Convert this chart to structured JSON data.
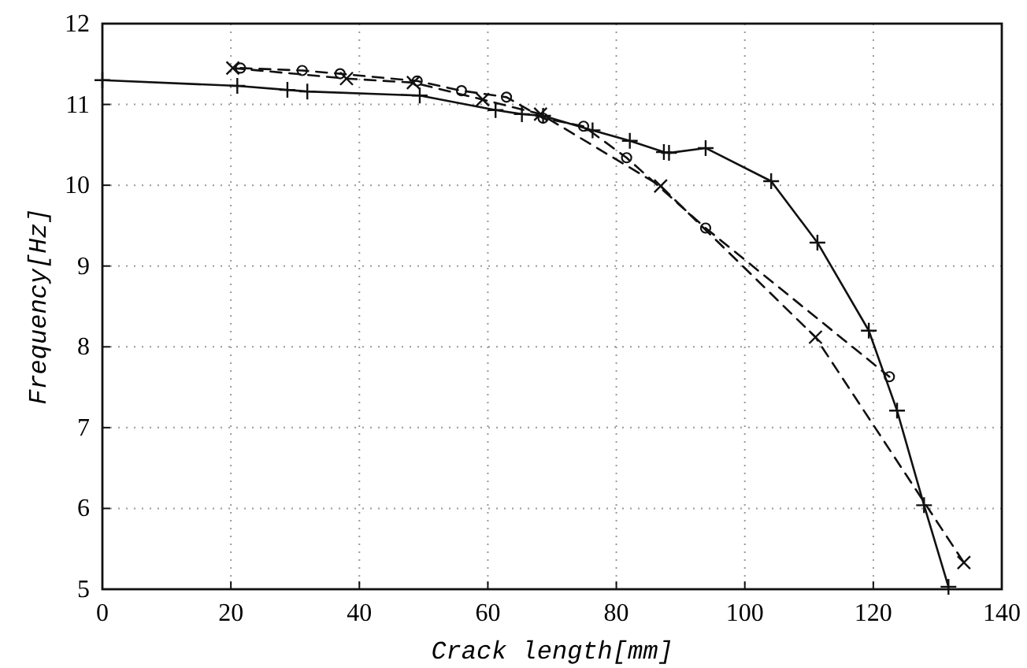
{
  "chart_data": {
    "type": "line",
    "xlabel": "Crack length[mm]",
    "ylabel": "Frequency[Hz]",
    "xlim": [
      0,
      140
    ],
    "ylim": [
      5,
      12
    ],
    "xticks": [
      0,
      20,
      40,
      60,
      80,
      100,
      120,
      140
    ],
    "yticks": [
      5,
      6,
      7,
      8,
      9,
      10,
      11,
      12
    ],
    "grid": true,
    "series": [
      {
        "color": "#111111",
        "marker": "plus",
        "line_style": "solid",
        "x": [
          0,
          21,
          28.8,
          31.9,
          49.4,
          61.2,
          65.3,
          68.6,
          76.3,
          82.1,
          87.4,
          88.2,
          93.9,
          104.1,
          111.3,
          119.3,
          123.7,
          127.9,
          131.7
        ],
        "values": [
          11.3,
          11.23,
          11.18,
          11.16,
          11.11,
          10.93,
          10.88,
          10.86,
          10.68,
          10.55,
          10.41,
          10.4,
          10.46,
          10.05,
          9.29,
          8.2,
          7.21,
          6.04,
          5.03
        ]
      },
      {
        "color": "#111111",
        "marker": "circle",
        "line_style": "dashed",
        "x": [
          21.5,
          31.1,
          37,
          49,
          55.9,
          62.9,
          68.6,
          74.9,
          81.6,
          93.9,
          122.5
        ],
        "values": [
          11.45,
          11.42,
          11.38,
          11.29,
          11.17,
          11.09,
          10.83,
          10.73,
          10.34,
          9.47,
          7.63
        ]
      },
      {
        "color": "#111111",
        "marker": "cross",
        "line_style": "dashed",
        "x": [
          20.3,
          38,
          48.4,
          59.2,
          68.2,
          86.9,
          111,
          134.1
        ],
        "values": [
          11.45,
          11.32,
          11.27,
          11.06,
          10.88,
          9.99,
          8.12,
          5.33
        ]
      }
    ]
  }
}
